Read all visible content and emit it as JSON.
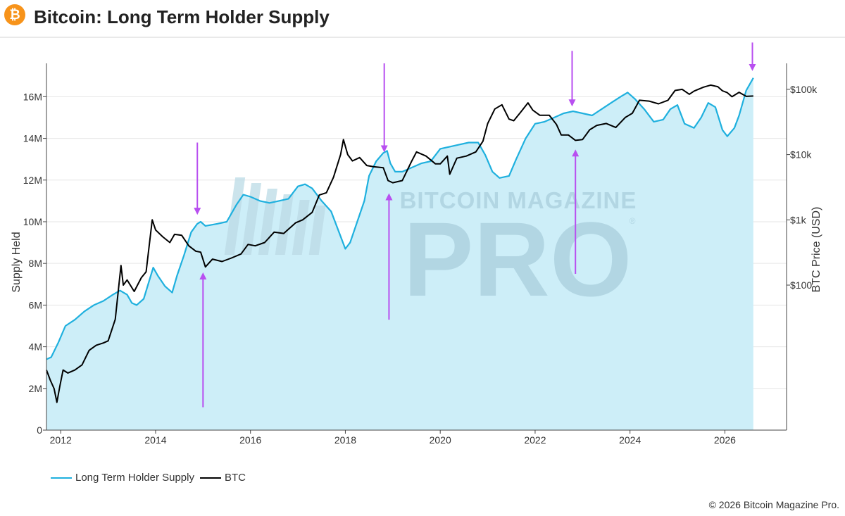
{
  "header": {
    "title": "Bitcoin: Long Term Holder Supply",
    "logo_glyph": "₿",
    "logo_color": "#f7931a"
  },
  "watermark": {
    "line1": "BITCOIN MAGAZINE",
    "line2": "PRO",
    "registered": "®"
  },
  "legend": {
    "items": [
      {
        "label": "Long Term Holder Supply",
        "color": "#1fb0de"
      },
      {
        "label": "BTC",
        "color": "#000000"
      }
    ]
  },
  "footer": {
    "copyright": "© 2026 Bitcoin Magazine Pro."
  },
  "colors": {
    "supply_line": "#1fb0de",
    "supply_fill": "#cdeef8",
    "price_line": "#000000",
    "arrow": "#b84ff0",
    "grid": "#e6e6e6",
    "axis": "#444444"
  },
  "chart_data": {
    "type": "area",
    "title": "Bitcoin: Long Term Holder Supply",
    "xlabel": "",
    "ylabel": "Supply Held",
    "y2label": "BTC Price (USD)",
    "x_range": [
      2011.7,
      2027.3
    ],
    "ylim": [
      0,
      17600000
    ],
    "y2_scale": "log",
    "y2lim": [
      0.6,
      250000
    ],
    "grid": true,
    "legend_position": "bottom-left",
    "x_ticks": [
      {
        "value": 2012,
        "label": "2012"
      },
      {
        "value": 2014,
        "label": "2014"
      },
      {
        "value": 2016,
        "label": "2016"
      },
      {
        "value": 2018,
        "label": "2018"
      },
      {
        "value": 2020,
        "label": "2020"
      },
      {
        "value": 2022,
        "label": "2022"
      },
      {
        "value": 2024,
        "label": "2024"
      },
      {
        "value": 2026,
        "label": "2026"
      }
    ],
    "y_ticks": [
      {
        "value": 0,
        "label": "0"
      },
      {
        "value": 2000000,
        "label": "2M"
      },
      {
        "value": 4000000,
        "label": "4M"
      },
      {
        "value": 6000000,
        "label": "6M"
      },
      {
        "value": 8000000,
        "label": "8M"
      },
      {
        "value": 10000000,
        "label": "10M"
      },
      {
        "value": 12000000,
        "label": "12M"
      },
      {
        "value": 14000000,
        "label": "14M"
      },
      {
        "value": 16000000,
        "label": "16M"
      }
    ],
    "y2_ticks": [
      {
        "value": 100,
        "label": "$100"
      },
      {
        "value": 1000,
        "label": "$1k"
      },
      {
        "value": 10000,
        "label": "$10k"
      },
      {
        "value": 100000,
        "label": "$100k"
      }
    ],
    "series": [
      {
        "name": "Long Term Holder Supply",
        "axis": "left",
        "points": [
          [
            2011.7,
            3400000
          ],
          [
            2011.8,
            3500000
          ],
          [
            2011.95,
            4200000
          ],
          [
            2012.1,
            5000000
          ],
          [
            2012.3,
            5300000
          ],
          [
            2012.5,
            5700000
          ],
          [
            2012.7,
            6000000
          ],
          [
            2012.9,
            6200000
          ],
          [
            2013.1,
            6500000
          ],
          [
            2013.25,
            6700000
          ],
          [
            2013.4,
            6500000
          ],
          [
            2013.5,
            6100000
          ],
          [
            2013.6,
            6000000
          ],
          [
            2013.75,
            6300000
          ],
          [
            2013.95,
            7800000
          ],
          [
            2014.05,
            7400000
          ],
          [
            2014.2,
            6900000
          ],
          [
            2014.35,
            6600000
          ],
          [
            2014.45,
            7400000
          ],
          [
            2014.6,
            8400000
          ],
          [
            2014.75,
            9500000
          ],
          [
            2014.88,
            9900000
          ],
          [
            2014.95,
            10000000
          ],
          [
            2015.05,
            9800000
          ],
          [
            2015.3,
            9900000
          ],
          [
            2015.5,
            10000000
          ],
          [
            2015.7,
            10800000
          ],
          [
            2015.85,
            11300000
          ],
          [
            2016.0,
            11200000
          ],
          [
            2016.2,
            11000000
          ],
          [
            2016.4,
            10900000
          ],
          [
            2016.6,
            11000000
          ],
          [
            2016.8,
            11100000
          ],
          [
            2017.0,
            11700000
          ],
          [
            2017.15,
            11800000
          ],
          [
            2017.3,
            11600000
          ],
          [
            2017.5,
            11000000
          ],
          [
            2017.7,
            10500000
          ],
          [
            2017.85,
            9600000
          ],
          [
            2018.0,
            8700000
          ],
          [
            2018.1,
            9000000
          ],
          [
            2018.25,
            10000000
          ],
          [
            2018.4,
            11000000
          ],
          [
            2018.5,
            12200000
          ],
          [
            2018.65,
            12900000
          ],
          [
            2018.8,
            13300000
          ],
          [
            2018.88,
            13400000
          ],
          [
            2018.95,
            12800000
          ],
          [
            2019.05,
            12400000
          ],
          [
            2019.2,
            12400000
          ],
          [
            2019.4,
            12600000
          ],
          [
            2019.6,
            12800000
          ],
          [
            2019.8,
            12900000
          ],
          [
            2020.0,
            13500000
          ],
          [
            2020.2,
            13600000
          ],
          [
            2020.4,
            13700000
          ],
          [
            2020.6,
            13800000
          ],
          [
            2020.8,
            13800000
          ],
          [
            2020.95,
            13200000
          ],
          [
            2021.1,
            12400000
          ],
          [
            2021.25,
            12100000
          ],
          [
            2021.45,
            12200000
          ],
          [
            2021.6,
            13000000
          ],
          [
            2021.8,
            14000000
          ],
          [
            2022.0,
            14700000
          ],
          [
            2022.2,
            14800000
          ],
          [
            2022.4,
            15000000
          ],
          [
            2022.6,
            15200000
          ],
          [
            2022.8,
            15300000
          ],
          [
            2023.0,
            15200000
          ],
          [
            2023.2,
            15100000
          ],
          [
            2023.4,
            15400000
          ],
          [
            2023.6,
            15700000
          ],
          [
            2023.8,
            16000000
          ],
          [
            2023.95,
            16200000
          ],
          [
            2024.1,
            15900000
          ],
          [
            2024.3,
            15400000
          ],
          [
            2024.5,
            14800000
          ],
          [
            2024.7,
            14900000
          ],
          [
            2024.85,
            15400000
          ],
          [
            2025.0,
            15600000
          ],
          [
            2025.15,
            14700000
          ],
          [
            2025.35,
            14500000
          ],
          [
            2025.5,
            15000000
          ],
          [
            2025.65,
            15700000
          ],
          [
            2025.8,
            15500000
          ],
          [
            2025.95,
            14400000
          ],
          [
            2026.05,
            14100000
          ],
          [
            2026.2,
            14500000
          ],
          [
            2026.3,
            15100000
          ],
          [
            2026.45,
            16300000
          ],
          [
            2026.55,
            16700000
          ],
          [
            2026.6,
            16900000
          ]
        ]
      },
      {
        "name": "BTC",
        "axis": "right",
        "points": [
          [
            2011.7,
            5
          ],
          [
            2011.78,
            3.5
          ],
          [
            2011.86,
            2.6
          ],
          [
            2011.92,
            1.6
          ],
          [
            2011.98,
            2.8
          ],
          [
            2012.05,
            5
          ],
          [
            2012.15,
            4.5
          ],
          [
            2012.3,
            5
          ],
          [
            2012.45,
            6
          ],
          [
            2012.6,
            10
          ],
          [
            2012.75,
            12
          ],
          [
            2012.9,
            13
          ],
          [
            2013.0,
            14
          ],
          [
            2013.15,
            30
          ],
          [
            2013.27,
            200
          ],
          [
            2013.32,
            100
          ],
          [
            2013.4,
            120
          ],
          [
            2013.55,
            80
          ],
          [
            2013.7,
            130
          ],
          [
            2013.8,
            160
          ],
          [
            2013.88,
            500
          ],
          [
            2013.93,
            1000
          ],
          [
            2014.0,
            700
          ],
          [
            2014.15,
            550
          ],
          [
            2014.3,
            450
          ],
          [
            2014.4,
            600
          ],
          [
            2014.55,
            580
          ],
          [
            2014.7,
            400
          ],
          [
            2014.85,
            330
          ],
          [
            2014.95,
            320
          ],
          [
            2015.05,
            190
          ],
          [
            2015.2,
            250
          ],
          [
            2015.4,
            230
          ],
          [
            2015.6,
            260
          ],
          [
            2015.8,
            300
          ],
          [
            2015.95,
            420
          ],
          [
            2016.1,
            400
          ],
          [
            2016.3,
            450
          ],
          [
            2016.5,
            650
          ],
          [
            2016.7,
            620
          ],
          [
            2016.95,
            900
          ],
          [
            2017.1,
            1000
          ],
          [
            2017.3,
            1300
          ],
          [
            2017.45,
            2400
          ],
          [
            2017.6,
            2600
          ],
          [
            2017.75,
            4500
          ],
          [
            2017.9,
            10000
          ],
          [
            2017.96,
            17000
          ],
          [
            2018.05,
            10000
          ],
          [
            2018.15,
            8000
          ],
          [
            2018.3,
            9000
          ],
          [
            2018.45,
            6800
          ],
          [
            2018.6,
            6500
          ],
          [
            2018.8,
            6300
          ],
          [
            2018.9,
            4000
          ],
          [
            2019.0,
            3700
          ],
          [
            2019.2,
            4000
          ],
          [
            2019.4,
            8000
          ],
          [
            2019.5,
            11000
          ],
          [
            2019.7,
            9500
          ],
          [
            2019.9,
            7200
          ],
          [
            2020.0,
            7200
          ],
          [
            2020.15,
            9500
          ],
          [
            2020.2,
            5000
          ],
          [
            2020.35,
            8800
          ],
          [
            2020.55,
            9500
          ],
          [
            2020.75,
            11000
          ],
          [
            2020.9,
            16000
          ],
          [
            2021.0,
            30000
          ],
          [
            2021.15,
            50000
          ],
          [
            2021.3,
            58000
          ],
          [
            2021.45,
            35000
          ],
          [
            2021.55,
            33000
          ],
          [
            2021.7,
            45000
          ],
          [
            2021.85,
            62000
          ],
          [
            2021.95,
            48000
          ],
          [
            2022.1,
            40000
          ],
          [
            2022.3,
            40000
          ],
          [
            2022.45,
            29000
          ],
          [
            2022.55,
            20000
          ],
          [
            2022.7,
            20000
          ],
          [
            2022.85,
            16500
          ],
          [
            2023.0,
            17000
          ],
          [
            2023.15,
            24000
          ],
          [
            2023.3,
            28000
          ],
          [
            2023.5,
            30000
          ],
          [
            2023.7,
            26000
          ],
          [
            2023.9,
            37000
          ],
          [
            2024.05,
            43000
          ],
          [
            2024.2,
            68000
          ],
          [
            2024.4,
            66000
          ],
          [
            2024.6,
            60000
          ],
          [
            2024.8,
            68000
          ],
          [
            2024.95,
            96000
          ],
          [
            2025.1,
            100000
          ],
          [
            2025.25,
            84000
          ],
          [
            2025.35,
            94000
          ],
          [
            2025.55,
            108000
          ],
          [
            2025.7,
            116000
          ],
          [
            2025.85,
            110000
          ],
          [
            2025.95,
            95000
          ],
          [
            2026.05,
            89000
          ],
          [
            2026.15,
            77000
          ],
          [
            2026.3,
            90000
          ],
          [
            2026.45,
            78000
          ],
          [
            2026.6,
            79000
          ]
        ]
      }
    ],
    "annotations": [
      {
        "type": "arrow",
        "direction": "down",
        "x": 2014.88,
        "y_start": 13800000,
        "y_end": 10500000
      },
      {
        "type": "arrow",
        "direction": "up",
        "x": 2015.0,
        "y_start": 1100000,
        "y_end": 7400000
      },
      {
        "type": "arrow",
        "direction": "down",
        "x": 2018.82,
        "y_start": 17600000,
        "y_end": 13500000
      },
      {
        "type": "arrow",
        "direction": "up",
        "x": 2018.92,
        "y_start": 5300000,
        "y_end": 11200000
      },
      {
        "type": "arrow",
        "direction": "down",
        "x": 2022.78,
        "y_start": 18200000,
        "y_end": 15700000
      },
      {
        "type": "arrow",
        "direction": "up",
        "x": 2022.85,
        "y_start": 7500000,
        "y_end": 13300000
      },
      {
        "type": "arrow",
        "direction": "down",
        "x": 2026.58,
        "y_start": 18600000,
        "y_end": 17400000
      }
    ]
  }
}
